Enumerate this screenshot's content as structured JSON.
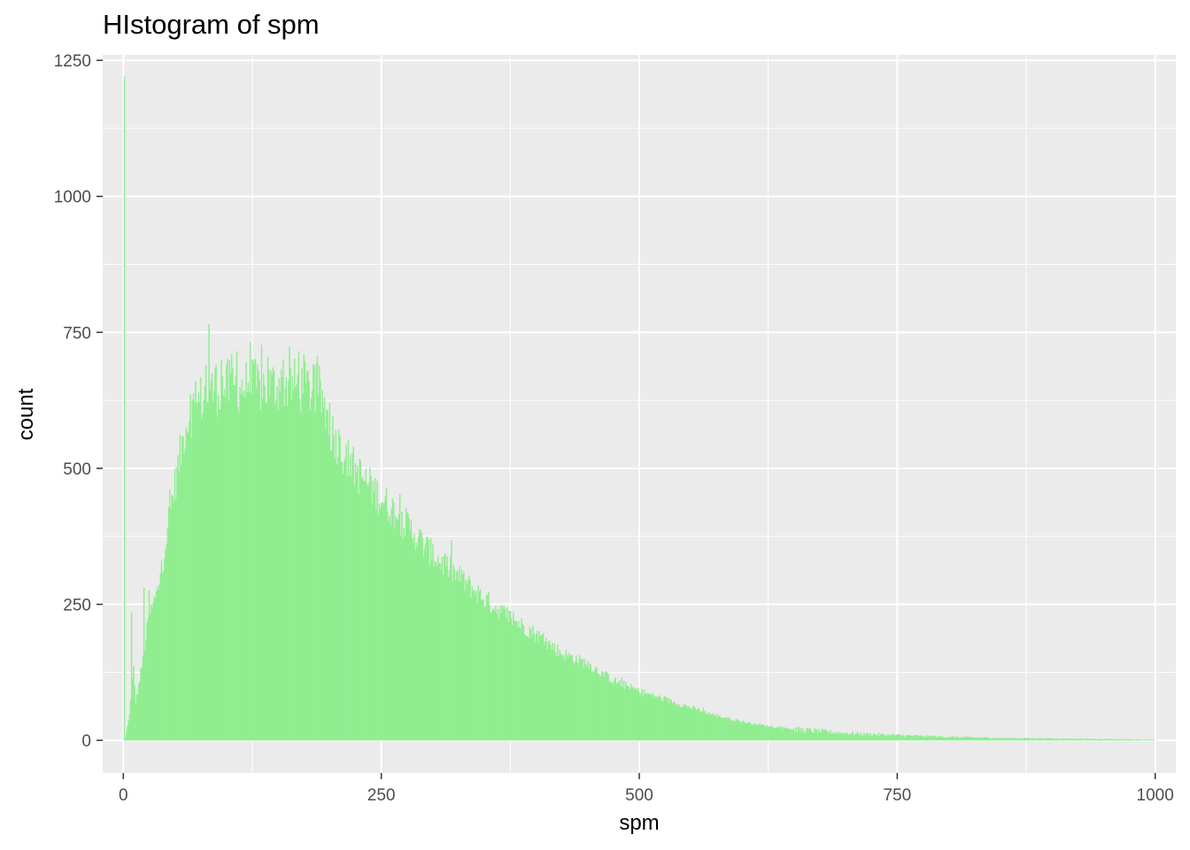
{
  "chart_data": {
    "type": "bar",
    "title": "HIstogram of spm",
    "xlabel": "spm",
    "ylabel": "count",
    "xlim": [
      -20,
      1020
    ],
    "ylim": [
      -60,
      1260
    ],
    "x_ticks": [
      0,
      250,
      500,
      750,
      1000
    ],
    "y_ticks": [
      0,
      250,
      500,
      750,
      1000,
      1250
    ],
    "bar_color": "#90ee90",
    "panel_background": "#ebebeb",
    "grid": true,
    "bin_width": 1,
    "density_points": [
      [
        0,
        0
      ],
      [
        1,
        1220
      ],
      [
        2,
        5
      ],
      [
        4,
        20
      ],
      [
        6,
        50
      ],
      [
        8,
        90
      ],
      [
        10,
        130
      ],
      [
        12,
        70
      ],
      [
        15,
        100
      ],
      [
        20,
        160
      ],
      [
        25,
        230
      ],
      [
        30,
        250
      ],
      [
        35,
        290
      ],
      [
        40,
        350
      ],
      [
        45,
        420
      ],
      [
        50,
        470
      ],
      [
        55,
        520
      ],
      [
        60,
        575
      ],
      [
        65,
        600
      ],
      [
        70,
        615
      ],
      [
        75,
        625
      ],
      [
        80,
        635
      ],
      [
        90,
        645
      ],
      [
        100,
        650
      ],
      [
        120,
        650
      ],
      [
        140,
        650
      ],
      [
        160,
        655
      ],
      [
        180,
        645
      ],
      [
        190,
        640
      ],
      [
        195,
        615
      ],
      [
        200,
        575
      ],
      [
        210,
        540
      ],
      [
        220,
        510
      ],
      [
        230,
        485
      ],
      [
        240,
        465
      ],
      [
        250,
        445
      ],
      [
        260,
        425
      ],
      [
        275,
        395
      ],
      [
        300,
        340
      ],
      [
        325,
        300
      ],
      [
        350,
        260
      ],
      [
        375,
        225
      ],
      [
        400,
        195
      ],
      [
        425,
        160
      ],
      [
        450,
        140
      ],
      [
        475,
        110
      ],
      [
        500,
        90
      ],
      [
        525,
        75
      ],
      [
        550,
        60
      ],
      [
        575,
        45
      ],
      [
        600,
        34
      ],
      [
        625,
        26
      ],
      [
        650,
        20
      ],
      [
        700,
        13
      ],
      [
        750,
        9
      ],
      [
        800,
        6
      ],
      [
        850,
        4
      ],
      [
        900,
        3
      ],
      [
        950,
        2
      ],
      [
        999,
        1
      ],
      [
        1000,
        0
      ]
    ],
    "spikes": [
      [
        1,
        1220
      ],
      [
        8,
        235
      ],
      [
        20,
        280
      ],
      [
        25,
        275
      ],
      [
        30,
        265
      ],
      [
        37,
        330
      ],
      [
        40,
        335
      ],
      [
        65,
        635
      ],
      [
        70,
        660
      ],
      [
        80,
        690
      ],
      [
        83,
        765
      ],
      [
        90,
        690
      ],
      [
        95,
        700
      ],
      [
        105,
        710
      ],
      [
        110,
        715
      ],
      [
        125,
        700
      ],
      [
        140,
        705
      ],
      [
        155,
        700
      ],
      [
        170,
        715
      ],
      [
        175,
        710
      ],
      [
        185,
        690
      ],
      [
        200,
        620
      ],
      [
        210,
        560
      ],
      [
        220,
        525
      ],
      [
        240,
        485
      ],
      [
        270,
        420
      ],
      [
        300,
        360
      ],
      [
        330,
        310
      ]
    ]
  }
}
